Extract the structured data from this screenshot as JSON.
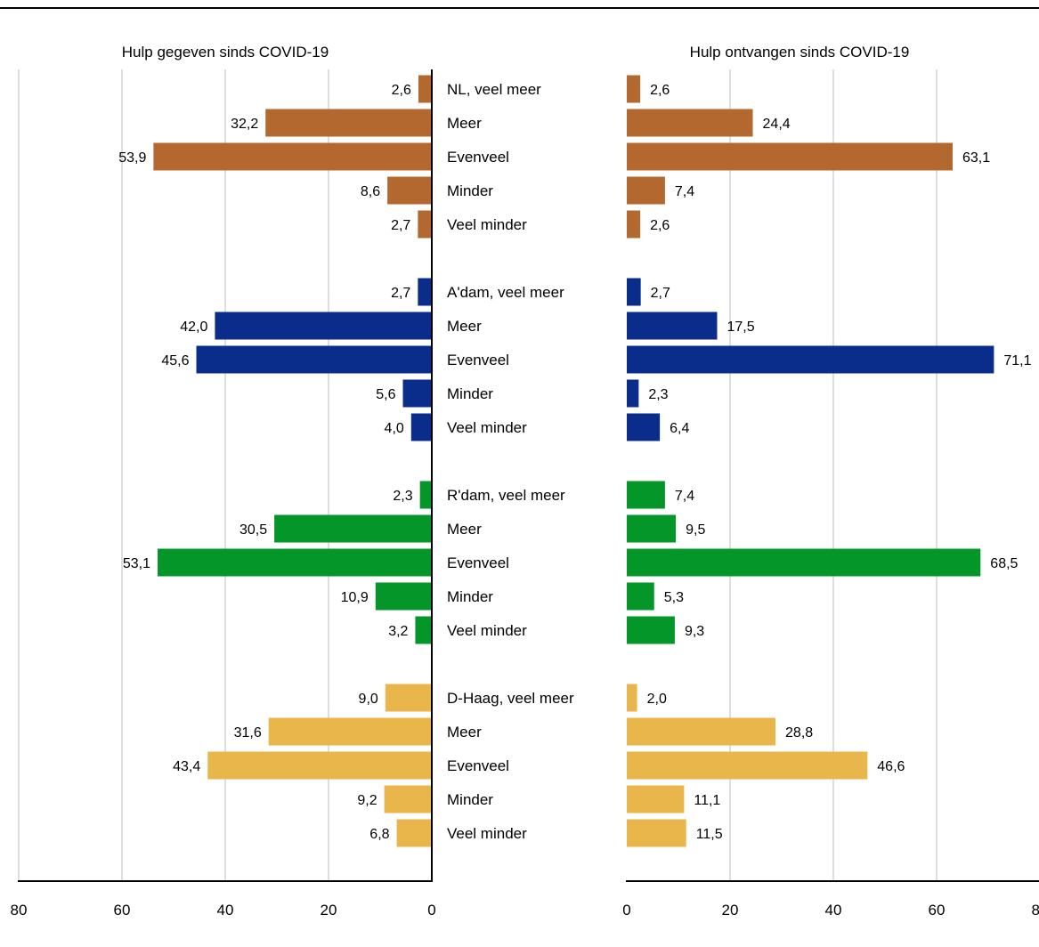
{
  "chart_data": {
    "type": "bar",
    "orientation": "horizontal",
    "grid": true,
    "xlim": [
      0,
      80
    ],
    "ticks": [
      "0",
      "20",
      "40",
      "60",
      "80"
    ],
    "panels": [
      {
        "title": "Hulp gegeven sinds COVID-19"
      },
      {
        "title": "Hulp ontvangen sinds COVID-19"
      }
    ],
    "groups": [
      {
        "color": "#b36830",
        "rows": [
          {
            "label": "NL, veel meer",
            "given": 2.6,
            "given_label": "2,6",
            "received": 2.6,
            "received_label": "2,6"
          },
          {
            "label": "Meer",
            "given": 32.2,
            "given_label": "32,2",
            "received": 24.4,
            "received_label": "24,4"
          },
          {
            "label": "Evenveel",
            "given": 53.9,
            "given_label": "53,9",
            "received": 63.1,
            "received_label": "63,1"
          },
          {
            "label": "Minder",
            "given": 8.6,
            "given_label": "8,6",
            "received": 7.4,
            "received_label": "7,4"
          },
          {
            "label": "Veel minder",
            "given": 2.7,
            "given_label": "2,7",
            "received": 2.6,
            "received_label": "2,6"
          }
        ]
      },
      {
        "color": "#0a2d8c",
        "rows": [
          {
            "label": "A'dam, veel meer",
            "given": 2.7,
            "given_label": "2,7",
            "received": 2.7,
            "received_label": "2,7"
          },
          {
            "label": "Meer",
            "given": 42.0,
            "given_label": "42,0",
            "received": 17.5,
            "received_label": "17,5"
          },
          {
            "label": "Evenveel",
            "given": 45.6,
            "given_label": "45,6",
            "received": 71.1,
            "received_label": "71,1"
          },
          {
            "label": "Minder",
            "given": 5.6,
            "given_label": "5,6",
            "received": 2.3,
            "received_label": "2,3"
          },
          {
            "label": "Veel minder",
            "given": 4.0,
            "given_label": "4,0",
            "received": 6.4,
            "received_label": "6,4"
          }
        ]
      },
      {
        "color": "#05962a",
        "rows": [
          {
            "label": "R'dam, veel meer",
            "given": 2.3,
            "given_label": "2,3",
            "received": 7.4,
            "received_label": "7,4"
          },
          {
            "label": "Meer",
            "given": 30.5,
            "given_label": "30,5",
            "received": 9.5,
            "received_label": "9,5"
          },
          {
            "label": "Evenveel",
            "given": 53.1,
            "given_label": "53,1",
            "received": 68.5,
            "received_label": "68,5"
          },
          {
            "label": "Minder",
            "given": 10.9,
            "given_label": "10,9",
            "received": 5.3,
            "received_label": "5,3"
          },
          {
            "label": "Veel minder",
            "given": 3.2,
            "given_label": "3,2",
            "received": 9.3,
            "received_label": "9,3"
          }
        ]
      },
      {
        "color": "#e9b64b",
        "rows": [
          {
            "label": "D-Haag, veel meer",
            "given": 9.0,
            "given_label": "9,0",
            "received": 2.0,
            "received_label": "2,0"
          },
          {
            "label": "Meer",
            "given": 31.6,
            "given_label": "31,6",
            "received": 28.8,
            "received_label": "28,8"
          },
          {
            "label": "Evenveel",
            "given": 43.4,
            "given_label": "43,4",
            "received": 46.6,
            "received_label": "46,6"
          },
          {
            "label": "Minder",
            "given": 9.2,
            "given_label": "9,2",
            "received": 11.1,
            "received_label": "11,1"
          },
          {
            "label": "Veel minder",
            "given": 6.8,
            "given_label": "6,8",
            "received": 11.5,
            "received_label": "11,5"
          }
        ]
      }
    ]
  }
}
